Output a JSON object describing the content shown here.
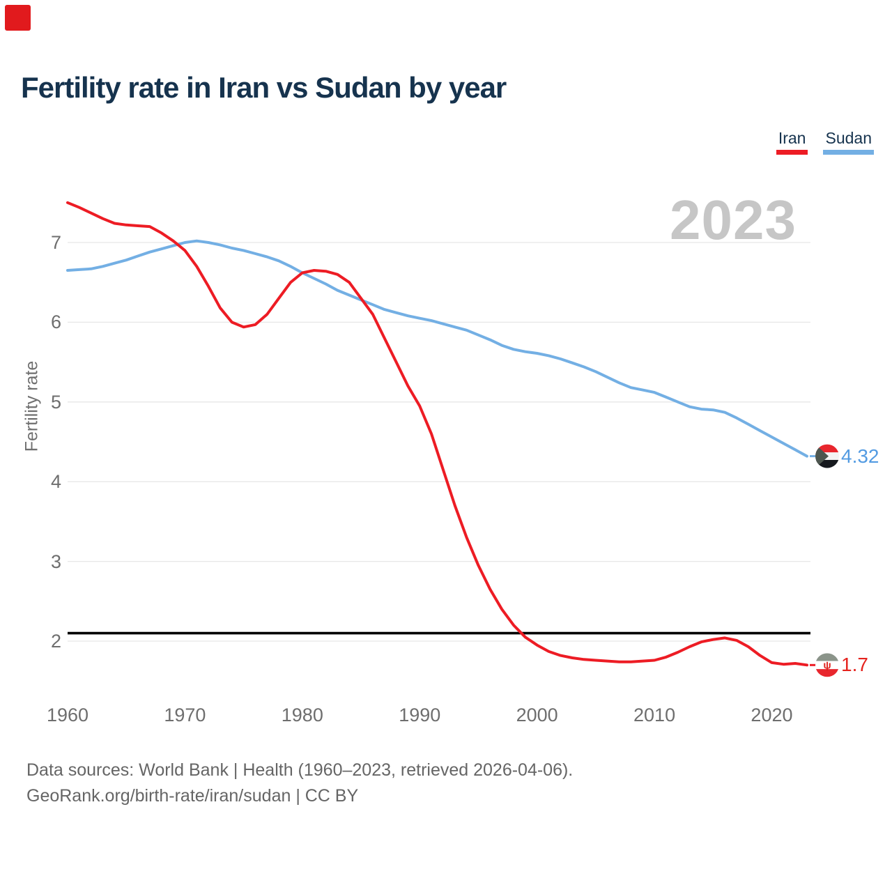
{
  "header": {
    "title": "Fertility rate in Iran vs Sudan by year"
  },
  "record_indicator": {
    "color": "#e11a1d"
  },
  "legend": {
    "items": [
      {
        "label": "Iran",
        "color": "#ed1c24"
      },
      {
        "label": "Sudan",
        "color": "#73afe4"
      }
    ]
  },
  "chart_data": {
    "type": "line",
    "title": "Fertility rate in Iran vs Sudan by year",
    "ylabel": "Fertility rate",
    "xlabel": "",
    "watermark": "2023",
    "grid": true,
    "legend_position": "top-right",
    "x_ticks": [
      1960,
      1970,
      1980,
      1990,
      2000,
      2010,
      2020
    ],
    "y_ticks": [
      2,
      3,
      4,
      5,
      6,
      7
    ],
    "ylim": [
      1.45,
      7.65
    ],
    "reference_line": {
      "value": 2.1,
      "color": "#000000"
    },
    "x": [
      1960,
      1961,
      1962,
      1963,
      1964,
      1965,
      1966,
      1967,
      1968,
      1969,
      1970,
      1971,
      1972,
      1973,
      1974,
      1975,
      1976,
      1977,
      1978,
      1979,
      1980,
      1981,
      1982,
      1983,
      1984,
      1985,
      1986,
      1987,
      1988,
      1989,
      1990,
      1991,
      1992,
      1993,
      1994,
      1995,
      1996,
      1997,
      1998,
      1999,
      2000,
      2001,
      2002,
      2003,
      2004,
      2005,
      2006,
      2007,
      2008,
      2009,
      2010,
      2011,
      2012,
      2013,
      2014,
      2015,
      2016,
      2017,
      2018,
      2019,
      2020,
      2021,
      2022,
      2023
    ],
    "series": [
      {
        "name": "Iran",
        "color": "#ed1c24",
        "label_color": "#e5231e",
        "end_label": "1.7",
        "values": [
          7.5,
          7.44,
          7.37,
          7.3,
          7.24,
          7.22,
          7.21,
          7.2,
          7.12,
          7.02,
          6.9,
          6.7,
          6.45,
          6.18,
          6.0,
          5.94,
          5.97,
          6.1,
          6.3,
          6.5,
          6.62,
          6.65,
          6.64,
          6.6,
          6.5,
          6.3,
          6.1,
          5.8,
          5.5,
          5.2,
          4.95,
          4.6,
          4.15,
          3.7,
          3.3,
          2.95,
          2.65,
          2.4,
          2.2,
          2.05,
          1.95,
          1.87,
          1.82,
          1.79,
          1.77,
          1.76,
          1.75,
          1.74,
          1.74,
          1.75,
          1.76,
          1.8,
          1.86,
          1.93,
          1.99,
          2.02,
          2.04,
          2.01,
          1.93,
          1.82,
          1.73,
          1.71,
          1.72,
          1.7
        ]
      },
      {
        "name": "Sudan",
        "color": "#73afe4",
        "label_color": "#539be2",
        "end_label": "4.32",
        "values": [
          6.65,
          6.66,
          6.67,
          6.7,
          6.74,
          6.78,
          6.83,
          6.88,
          6.92,
          6.96,
          7.0,
          7.02,
          7.0,
          6.97,
          6.93,
          6.9,
          6.86,
          6.82,
          6.77,
          6.7,
          6.62,
          6.55,
          6.48,
          6.4,
          6.34,
          6.28,
          6.22,
          6.16,
          6.12,
          6.08,
          6.05,
          6.02,
          5.98,
          5.94,
          5.9,
          5.84,
          5.78,
          5.71,
          5.66,
          5.63,
          5.61,
          5.58,
          5.54,
          5.49,
          5.44,
          5.38,
          5.31,
          5.24,
          5.18,
          5.15,
          5.12,
          5.06,
          5.0,
          4.94,
          4.91,
          4.9,
          4.87,
          4.8,
          4.72,
          4.64,
          4.56,
          4.48,
          4.4,
          4.32
        ]
      }
    ]
  },
  "flags": {
    "iran": {
      "top": "#8b948a",
      "middle": "#ffffff",
      "bottom": "#e8262d",
      "emblem": "#e0231e",
      "emblem_glyph": "ψ"
    },
    "sudan": {
      "top": "#e8262d",
      "middle": "#f4f4f4",
      "bottom": "#16191e",
      "triangle": "#4d564f"
    }
  },
  "footer": {
    "line1": "Data sources: World Bank | Health (1960–2023, retrieved 2026-04-06).",
    "line2": "GeoRank.org/birth-rate/iran/sudan | CC BY"
  }
}
